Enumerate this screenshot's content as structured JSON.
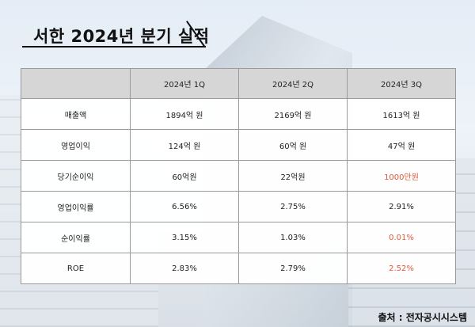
{
  "title": "서한 2024년 분기 실적",
  "table": {
    "header": [
      "",
      "2024년 1Q",
      "2024년 2Q",
      "2024년 3Q"
    ],
    "rows": [
      {
        "label": "매출액",
        "values": [
          "1894억 원",
          "2169억 원",
          "1613억 원"
        ],
        "highlight": [
          false,
          false,
          false
        ]
      },
      {
        "label": "영업이익",
        "values": [
          "124억 원",
          "60억 원",
          "47억 원"
        ],
        "highlight": [
          false,
          false,
          false
        ]
      },
      {
        "label": "당기순이익",
        "values": [
          "60억원",
          "22억원",
          "1000만원"
        ],
        "highlight": [
          false,
          false,
          true
        ]
      },
      {
        "label": "영업이익률",
        "values": [
          "6.56%",
          "2.75%",
          "2.91%"
        ],
        "highlight": [
          false,
          false,
          false
        ]
      },
      {
        "label": "순이익률",
        "values": [
          "3.15%",
          "1.03%",
          "0.01%"
        ],
        "highlight": [
          false,
          false,
          true
        ]
      },
      {
        "label": "ROE",
        "values": [
          "2.83%",
          "2.79%",
          "2.52%"
        ],
        "highlight": [
          false,
          false,
          true
        ]
      }
    ]
  },
  "source": "출처 : 전자공시시스템",
  "colors": {
    "highlight": "#e05a3a",
    "header_bg": "#d6d6d6"
  }
}
